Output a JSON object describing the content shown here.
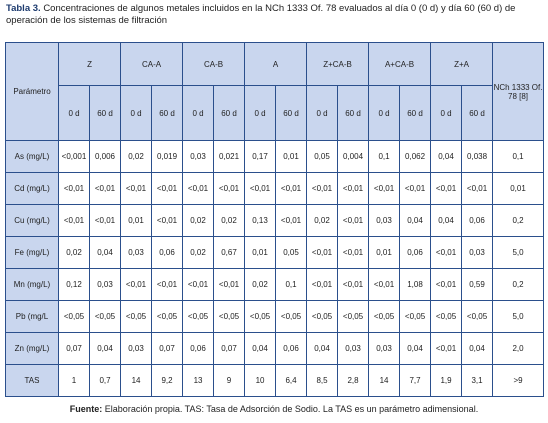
{
  "caption": {
    "label": "Tabla 3.",
    "text": "Concentraciones de algunos metales incluidos en la NCh 1333 Of. 78 evaluados al día 0 (0 d) y día 60 (60 d) de operación de los sistemas de filtración"
  },
  "table": {
    "header": {
      "param": "Parámetro",
      "groups": [
        "Z",
        "CA-A",
        "CA-B",
        "A",
        "Z+CA-B",
        "A+CA-B",
        "Z+A"
      ],
      "sub": [
        "0 d",
        "60 d",
        "0 d",
        "60 d",
        "0 d",
        "60 d",
        "0 d",
        "60 d",
        "0 d",
        "60 d",
        "0 d",
        "60 d",
        "0 d",
        "60 d"
      ],
      "norm": "NCh 1333 Of. 78 [8]"
    },
    "rows": [
      {
        "param": "As (mg/L)",
        "values": [
          "<0,001",
          "0,006",
          "0,02",
          "0,019",
          "0,03",
          "0,021",
          "0,17",
          "0,01",
          "0,05",
          "0,004",
          "0,1",
          "0,062",
          "0,04",
          "0,038",
          "0,1"
        ]
      },
      {
        "param": "Cd (mg/L)",
        "values": [
          "<0,01",
          "<0,01",
          "<0,01",
          "<0,01",
          "<0,01",
          "<0,01",
          "<0,01",
          "<0,01",
          "<0,01",
          "<0,01",
          "<0,01",
          "<0,01",
          "<0,01",
          "<0,01",
          "0,01"
        ]
      },
      {
        "param": "Cu (mg/L)",
        "values": [
          "<0,01",
          "<0,01",
          "0,01",
          "<0,01",
          "0,02",
          "0,02",
          "0,13",
          "<0,01",
          "0,02",
          "<0,01",
          "0,03",
          "0,04",
          "0,04",
          "0,06",
          "0,2"
        ]
      },
      {
        "param": "Fe (mg/L)",
        "values": [
          "0,02",
          "0,04",
          "0,03",
          "0,06",
          "0,02",
          "0,67",
          "0,01",
          "0,05",
          "<0,01",
          "<0,01",
          "0,01",
          "0,06",
          "<0,01",
          "0,03",
          "5,0"
        ]
      },
      {
        "param": "Mn (mg/L)",
        "values": [
          "0,12",
          "0,03",
          "<0,01",
          "<0,01",
          "<0,01",
          "<0,01",
          "0,02",
          "0,1",
          "<0,01",
          "<0,01",
          "<0,01",
          "1,08",
          "<0,01",
          "0,59",
          "0,2"
        ]
      },
      {
        "param": "Pb (mg/L",
        "values": [
          "<0,05",
          "<0,05",
          "<0,05",
          "<0,05",
          "<0,05",
          "<0,05",
          "<0,05",
          "<0,05",
          "<0,05",
          "<0,05",
          "<0,05",
          "<0,05",
          "<0,05",
          "<0,05",
          "5,0"
        ]
      },
      {
        "param": "Zn (mg/L)",
        "values": [
          "0,07",
          "0,04",
          "0,03",
          "0,07",
          "0,06",
          "0,07",
          "0,04",
          "0,06",
          "0,04",
          "0,03",
          "0,03",
          "0,04",
          "<0,01",
          "0,04",
          "2,0"
        ]
      },
      {
        "param": "TAS",
        "values": [
          "1",
          "0,7",
          "14",
          "9,2",
          "13",
          "9",
          "10",
          "6,4",
          "8,5",
          "2,8",
          "14",
          "7,7",
          "1,9",
          "3,1",
          ">9"
        ]
      }
    ]
  },
  "footer": {
    "label": "Fuente:",
    "text": "Elaboración propia. TAS: Tasa de Adsorción de Sodio. La TAS es un parámetro adimensional."
  }
}
